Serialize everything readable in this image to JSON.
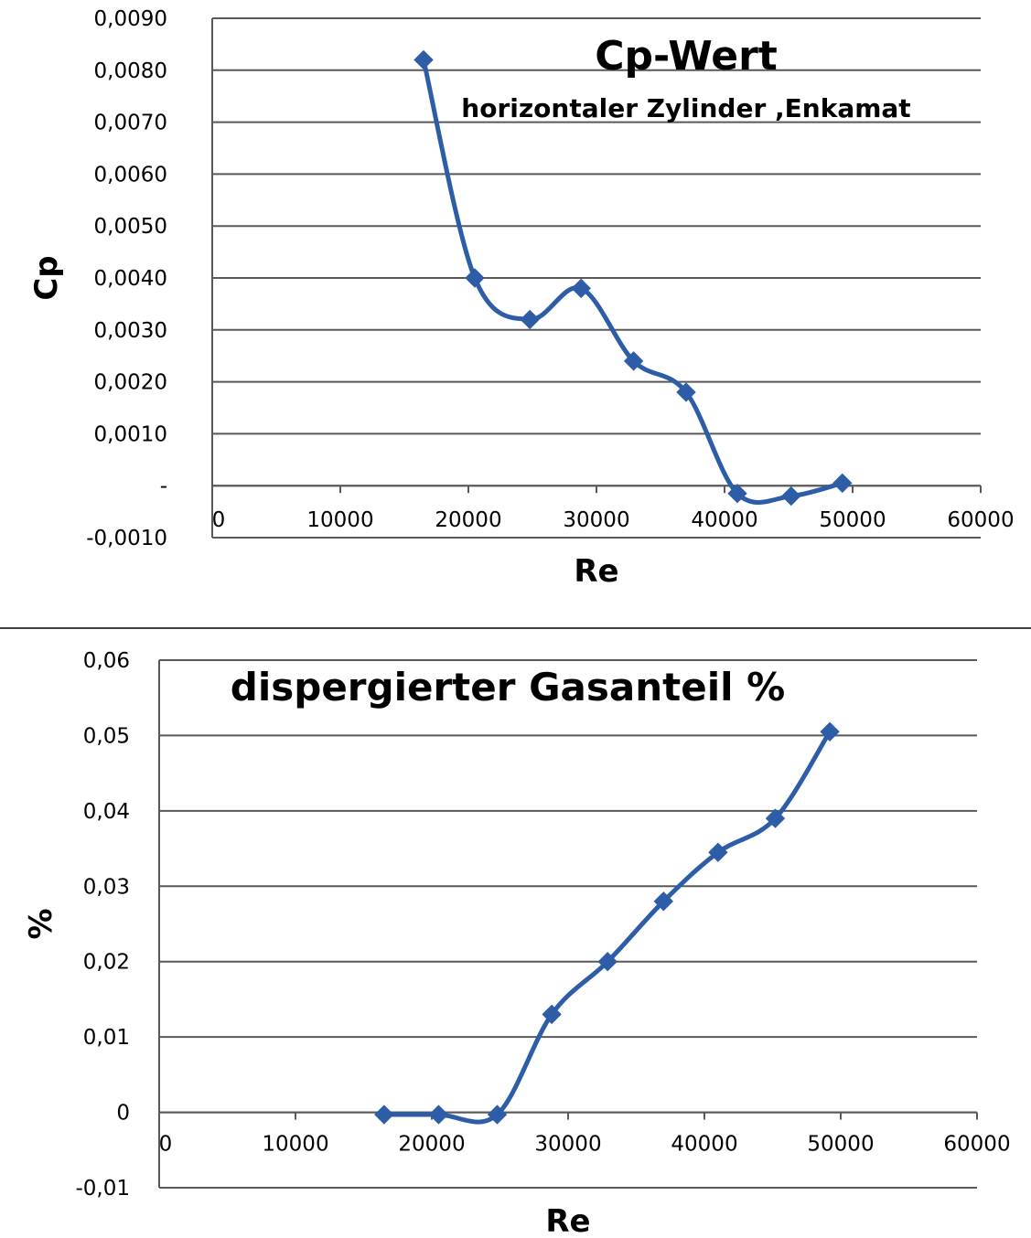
{
  "colors": {
    "series": "#2E5DA8",
    "grid": "#595959",
    "axis": "#595959",
    "separator": "#404040",
    "text": "#000000"
  },
  "chart_data": [
    {
      "type": "line",
      "title": "Cp-Wert",
      "subtitle": "horizontaler Zylinder ,Enkamat",
      "xlabel": "Re",
      "ylabel": "Cp",
      "xlim": [
        0,
        60000
      ],
      "ylim": [
        -0.001,
        0.009
      ],
      "x_ticks": [
        0,
        10000,
        20000,
        30000,
        40000,
        50000,
        60000
      ],
      "x_tick_labels": [
        "0",
        "10000",
        "20000",
        "30000",
        "40000",
        "50000",
        "60000"
      ],
      "y_ticks": [
        0.009,
        0.008,
        0.007,
        0.006,
        0.005,
        0.004,
        0.003,
        0.002,
        0.001,
        0,
        -0.001
      ],
      "y_tick_labels": [
        "0,0090",
        "0,0080",
        "0,0070",
        "0,0060",
        "0,0050",
        "0,0040",
        "0,0030",
        "0,0020",
        "0,0010",
        "-",
        "-0,0010"
      ],
      "grid": true,
      "legend": "none",
      "marker": "diamond",
      "smooth": true,
      "series": [
        {
          "x": [
            16500,
            20500,
            24800,
            28800,
            32900,
            37000,
            41000,
            45200,
            49200
          ],
          "values": [
            0.0082,
            0.004,
            0.0032,
            0.0038,
            0.0024,
            0.0018,
            -0.00015,
            -0.0002,
            5e-05
          ]
        }
      ]
    },
    {
      "type": "line",
      "title": "dispergierter Gasanteil %",
      "xlabel": "Re",
      "ylabel": "%",
      "xlim": [
        0,
        60000
      ],
      "ylim": [
        -0.01,
        0.06
      ],
      "x_ticks": [
        0,
        10000,
        20000,
        30000,
        40000,
        50000,
        60000
      ],
      "x_tick_labels": [
        "0",
        "10000",
        "20000",
        "30000",
        "40000",
        "50000",
        "60000"
      ],
      "y_ticks": [
        0.06,
        0.05,
        0.04,
        0.03,
        0.02,
        0.01,
        0,
        -0.01
      ],
      "y_tick_labels": [
        "0,06",
        "0,05",
        "0,04",
        "0,03",
        "0,02",
        "0,01",
        "0",
        "-0,01"
      ],
      "grid": true,
      "legend": "none",
      "marker": "diamond",
      "smooth": true,
      "series": [
        {
          "x": [
            16500,
            20500,
            24800,
            28800,
            32900,
            37000,
            41000,
            45200,
            49200
          ],
          "values": [
            -0.0003,
            -0.0003,
            -0.0003,
            0.013,
            0.02,
            0.028,
            0.0345,
            0.039,
            0.0505
          ]
        }
      ]
    }
  ]
}
